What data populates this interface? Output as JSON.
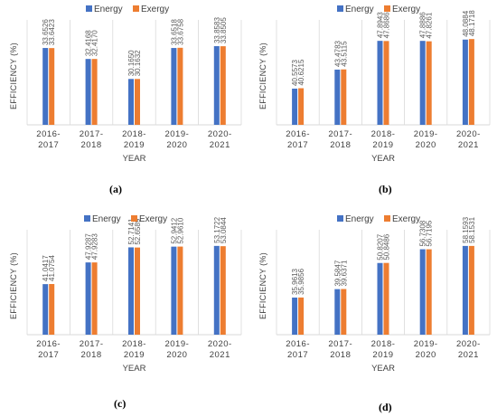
{
  "colors": {
    "energy": "#4472C4",
    "exergy": "#ED7D31",
    "grid": "#D9D9D9",
    "text": "#595959"
  },
  "chart_data": [
    {
      "type": "bar",
      "panel": "(a)",
      "categories": [
        "2016-2017",
        "2017-2018",
        "2018-2019",
        "2019-2020",
        "2020-2021"
      ],
      "series": [
        {
          "name": "Energy",
          "values": [
            33.6526,
            32.4168,
            30.165,
            33.6518,
            33.8583
          ],
          "labels": [
            "33.6526",
            "32.4168",
            "30.1650",
            "33.6518",
            "33.8583"
          ]
        },
        {
          "name": "Exergy",
          "values": [
            33.6423,
            32.417,
            30.1632,
            33.6758,
            33.8505
          ],
          "labels": [
            "33.6423",
            "32.4170",
            "30.1632",
            "33.6758",
            "33.8505"
          ]
        }
      ],
      "xlabel": "YEAR",
      "ylabel": "EFFICIENCY (%)",
      "ylim": [
        25,
        36
      ],
      "legend": "top",
      "grid": true
    },
    {
      "type": "bar",
      "panel": "(b)",
      "categories": [
        "2016-2017",
        "2017-2018",
        "2018-2019",
        "2019-2020",
        "2020-2021"
      ],
      "series": [
        {
          "name": "Energy",
          "values": [
            40.5573,
            43.4783,
            47.8943,
            47.8886,
            48.0884
          ],
          "labels": [
            "40.5573",
            "43.4783",
            "47.8943",
            "47.8886",
            "48.0884"
          ]
        },
        {
          "name": "Exergy",
          "values": [
            40.6215,
            43.5115,
            47.8686,
            47.8261,
            48.1718
          ],
          "labels": [
            "40.6215",
            "43.5115",
            "47.8686",
            "47.8261",
            "48.1718"
          ]
        }
      ],
      "xlabel": "YEAR",
      "ylabel": "EFFICIENCY (%)",
      "ylim": [
        35,
        50
      ],
      "legend": "top",
      "grid": true
    },
    {
      "type": "bar",
      "panel": "(c)",
      "categories": [
        "2016-2017",
        "2017-2018",
        "2018-2019",
        "2019-2020",
        "2020-2021"
      ],
      "series": [
        {
          "name": "Energy",
          "values": [
            41.0417,
            47.9287,
            52.7141,
            52.9412,
            53.1722
          ],
          "labels": [
            "41.0417",
            "47.9287",
            "52.7141",
            "52.9412",
            "53.1722"
          ]
        },
        {
          "name": "Exergy",
          "values": [
            41.0754,
            47.9283,
            52.6589,
            52.961,
            53.0844
          ],
          "labels": [
            "41.0754",
            "47.9283",
            "52.6589",
            "52.9610",
            "53.0844"
          ]
        }
      ],
      "xlabel": "YEAR",
      "ylabel": "EFFICIENCY (%)",
      "ylim": [
        25,
        56
      ],
      "legend": "top",
      "grid": true
    },
    {
      "type": "bar",
      "panel": "(d)",
      "categories": [
        "2016-2017",
        "2017-2018",
        "2018-2019",
        "2019-2020",
        "2020-2021"
      ],
      "series": [
        {
          "name": "Energy",
          "values": [
            35.9613,
            39.5847,
            50.8207,
            56.7308,
            58.1593
          ],
          "labels": [
            "35.9613",
            "39.5847",
            "50.8207",
            "56.7308",
            "58.1593"
          ]
        },
        {
          "name": "Exergy",
          "values": [
            35.9856,
            39.6371,
            50.8486,
            56.7195,
            58.1531
          ],
          "labels": [
            "35.9856",
            "39.6371",
            "50.8486",
            "56.7195",
            "58.1531"
          ]
        }
      ],
      "xlabel": "YEAR",
      "ylabel": "EFFICIENCY (%)",
      "ylim": [
        20,
        62
      ],
      "legend": "top",
      "grid": true
    }
  ]
}
